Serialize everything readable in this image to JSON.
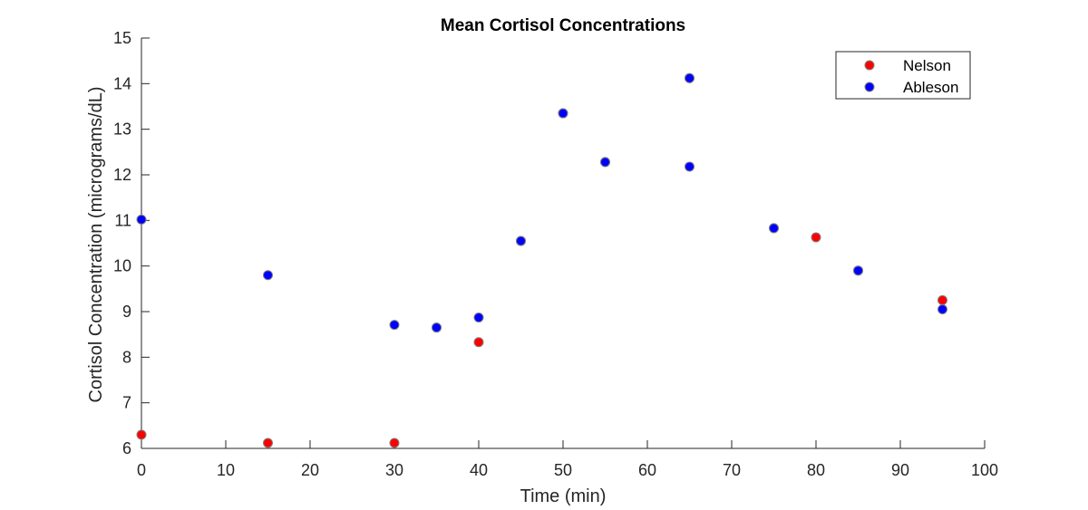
{
  "chart_data": {
    "type": "scatter",
    "title": "Mean Cortisol Concentrations",
    "xlabel": "Time (min)",
    "ylabel": "Cortisol Concentration (micrograms/dL)",
    "xlim": [
      0,
      100
    ],
    "ylim": [
      6,
      15
    ],
    "xticks": [
      0,
      10,
      20,
      30,
      40,
      50,
      60,
      70,
      80,
      90,
      100
    ],
    "yticks": [
      6,
      7,
      8,
      9,
      10,
      11,
      12,
      13,
      14,
      15
    ],
    "grid": false,
    "legend_position": "top-right",
    "series": [
      {
        "name": "Nelson",
        "color": "#ff0000",
        "points": [
          {
            "x": 0,
            "y": 6.3
          },
          {
            "x": 15,
            "y": 6.12
          },
          {
            "x": 30,
            "y": 6.12
          },
          {
            "x": 35,
            "y": 8.65
          },
          {
            "x": 40,
            "y": 8.33
          },
          {
            "x": 45,
            "y": 10.55
          },
          {
            "x": 50,
            "y": 13.35
          },
          {
            "x": 55,
            "y": 12.28
          },
          {
            "x": 65,
            "y": 14.12
          },
          {
            "x": 75,
            "y": 10.83
          },
          {
            "x": 80,
            "y": 10.63
          },
          {
            "x": 85,
            "y": 9.9
          },
          {
            "x": 95,
            "y": 9.25
          }
        ]
      },
      {
        "name": "Ableson",
        "color": "#0000ff",
        "points": [
          {
            "x": 0,
            "y": 11.02
          },
          {
            "x": 15,
            "y": 9.8
          },
          {
            "x": 30,
            "y": 8.71
          },
          {
            "x": 35,
            "y": 8.65
          },
          {
            "x": 40,
            "y": 8.87
          },
          {
            "x": 45,
            "y": 10.55
          },
          {
            "x": 50,
            "y": 13.35
          },
          {
            "x": 55,
            "y": 12.28
          },
          {
            "x": 65,
            "y": 14.12
          },
          {
            "x": 65,
            "y": 12.18
          },
          {
            "x": 75,
            "y": 10.83
          },
          {
            "x": 85,
            "y": 9.9
          },
          {
            "x": 95,
            "y": 9.05
          }
        ]
      }
    ]
  }
}
